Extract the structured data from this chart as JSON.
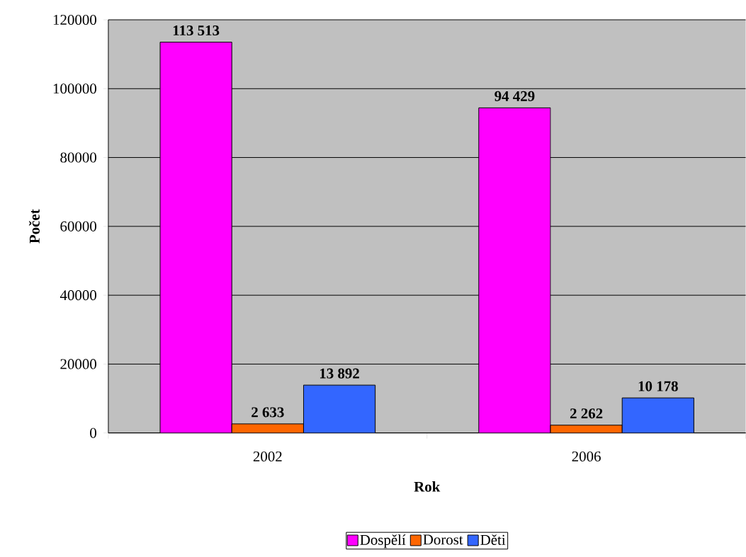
{
  "chart_data": {
    "type": "bar",
    "xlabel": "Rok",
    "ylabel": "Počet",
    "categories": [
      "2002",
      "2006"
    ],
    "series": [
      {
        "name": "Dospělí",
        "color": "#ff00ff",
        "values": [
          113513,
          94429
        ],
        "value_labels": [
          "113 513",
          "94 429"
        ]
      },
      {
        "name": "Dorost",
        "color": "#ff6600",
        "values": [
          2633,
          2262
        ],
        "value_labels": [
          "2 633",
          "2 262"
        ]
      },
      {
        "name": "Děti",
        "color": "#3366ff",
        "values": [
          13892,
          10178
        ],
        "value_labels": [
          "13 892",
          "10 178"
        ]
      }
    ],
    "ylim": [
      0,
      120000
    ],
    "yticks": [
      0,
      20000,
      40000,
      60000,
      80000,
      100000,
      120000
    ],
    "grid": "y",
    "legend": "bottom"
  }
}
